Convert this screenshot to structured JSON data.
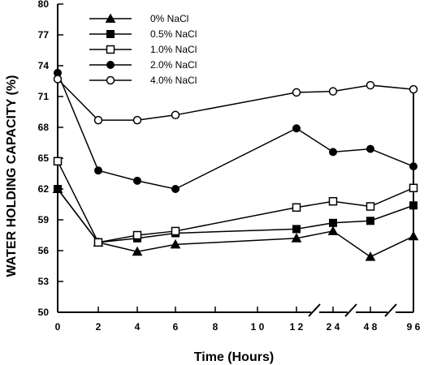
{
  "chart_data": {
    "type": "line",
    "xlabel": "Time (Hours)",
    "ylabel": "WATER HOLDING CAPACITY (%)",
    "ylim": [
      50,
      80
    ],
    "yticks": [
      80,
      77,
      74,
      71,
      68,
      65,
      62,
      59,
      56,
      53,
      50
    ],
    "ytick_labels": [
      "80",
      "77",
      "74",
      "71",
      "68",
      "65",
      "62",
      "59",
      "56",
      "53",
      "50"
    ],
    "xticks": [
      0,
      2,
      4,
      6,
      8,
      10,
      12,
      24,
      48,
      96
    ],
    "xtick_labels": [
      "0",
      "2",
      "4",
      "6",
      "8",
      "1 0",
      "1 2",
      "2 4",
      "4 8",
      "9 6"
    ],
    "x_axis_breaks": [
      "12-24",
      "24-48",
      "48-96"
    ],
    "grid": false,
    "legend_position": "top-left",
    "series": [
      {
        "name": "0% NaCl",
        "marker": "filled-triangle",
        "x": [
          0,
          2,
          4,
          6,
          12,
          24,
          48,
          96
        ],
        "y": [
          62.0,
          56.8,
          55.9,
          56.6,
          57.2,
          57.9,
          55.4,
          57.4
        ]
      },
      {
        "name": "0.5% NaCl",
        "marker": "filled-square",
        "x": [
          0,
          2,
          4,
          6,
          12,
          24,
          48,
          96
        ],
        "y": [
          62.0,
          56.8,
          57.2,
          57.7,
          58.1,
          58.7,
          58.9,
          60.4
        ]
      },
      {
        "name": "1.0% NaCl",
        "marker": "open-square",
        "x": [
          0,
          2,
          4,
          6,
          12,
          24,
          48,
          96
        ],
        "y": [
          64.7,
          56.8,
          57.5,
          57.9,
          60.2,
          60.8,
          60.3,
          62.1
        ]
      },
      {
        "name": "2.0% NaCl",
        "marker": "filled-circle",
        "x": [
          0,
          2,
          4,
          6,
          12,
          24,
          48,
          96
        ],
        "y": [
          73.3,
          63.8,
          62.8,
          62.0,
          67.9,
          65.6,
          65.9,
          64.2
        ]
      },
      {
        "name": "4.0% NaCl",
        "marker": "open-circle",
        "x": [
          0,
          2,
          4,
          6,
          12,
          24,
          48,
          96
        ],
        "y": [
          72.7,
          68.7,
          68.7,
          69.2,
          71.4,
          71.5,
          72.1,
          71.7
        ]
      }
    ]
  }
}
